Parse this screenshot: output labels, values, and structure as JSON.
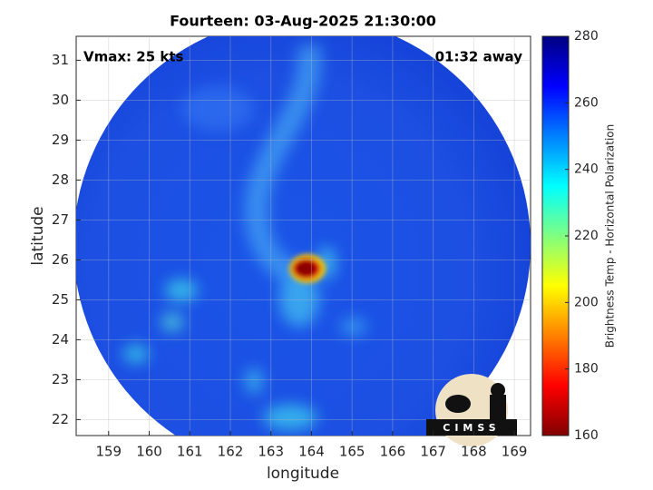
{
  "chart_data": {
    "type": "map",
    "title": "Fourteen: 03-Aug-2025 21:30:00",
    "annotations": [
      "Vmax: 25 kts",
      "01:32 away"
    ],
    "xlabel": "longitude",
    "ylabel": "latitude",
    "xlim": [
      158.2,
      169.4
    ],
    "ylim": [
      21.6,
      31.6
    ],
    "xticks": [
      159,
      160,
      161,
      162,
      163,
      164,
      165,
      166,
      167,
      168,
      169
    ],
    "yticks": [
      22,
      23,
      24,
      25,
      26,
      27,
      28,
      29,
      30,
      31
    ],
    "grid": true,
    "logo_text": "CIMSS",
    "colorbar": {
      "label": "Brightness Temp - Horizontal Polarization",
      "lim": [
        160,
        280
      ],
      "ticks": [
        160,
        180,
        200,
        220,
        240,
        260,
        280
      ],
      "colormap": [
        "#800000",
        "#ff0000",
        "#ff8000",
        "#ffff00",
        "#80ff80",
        "#00ffff",
        "#0080ff",
        "#0000ff",
        "#000080"
      ]
    }
  }
}
